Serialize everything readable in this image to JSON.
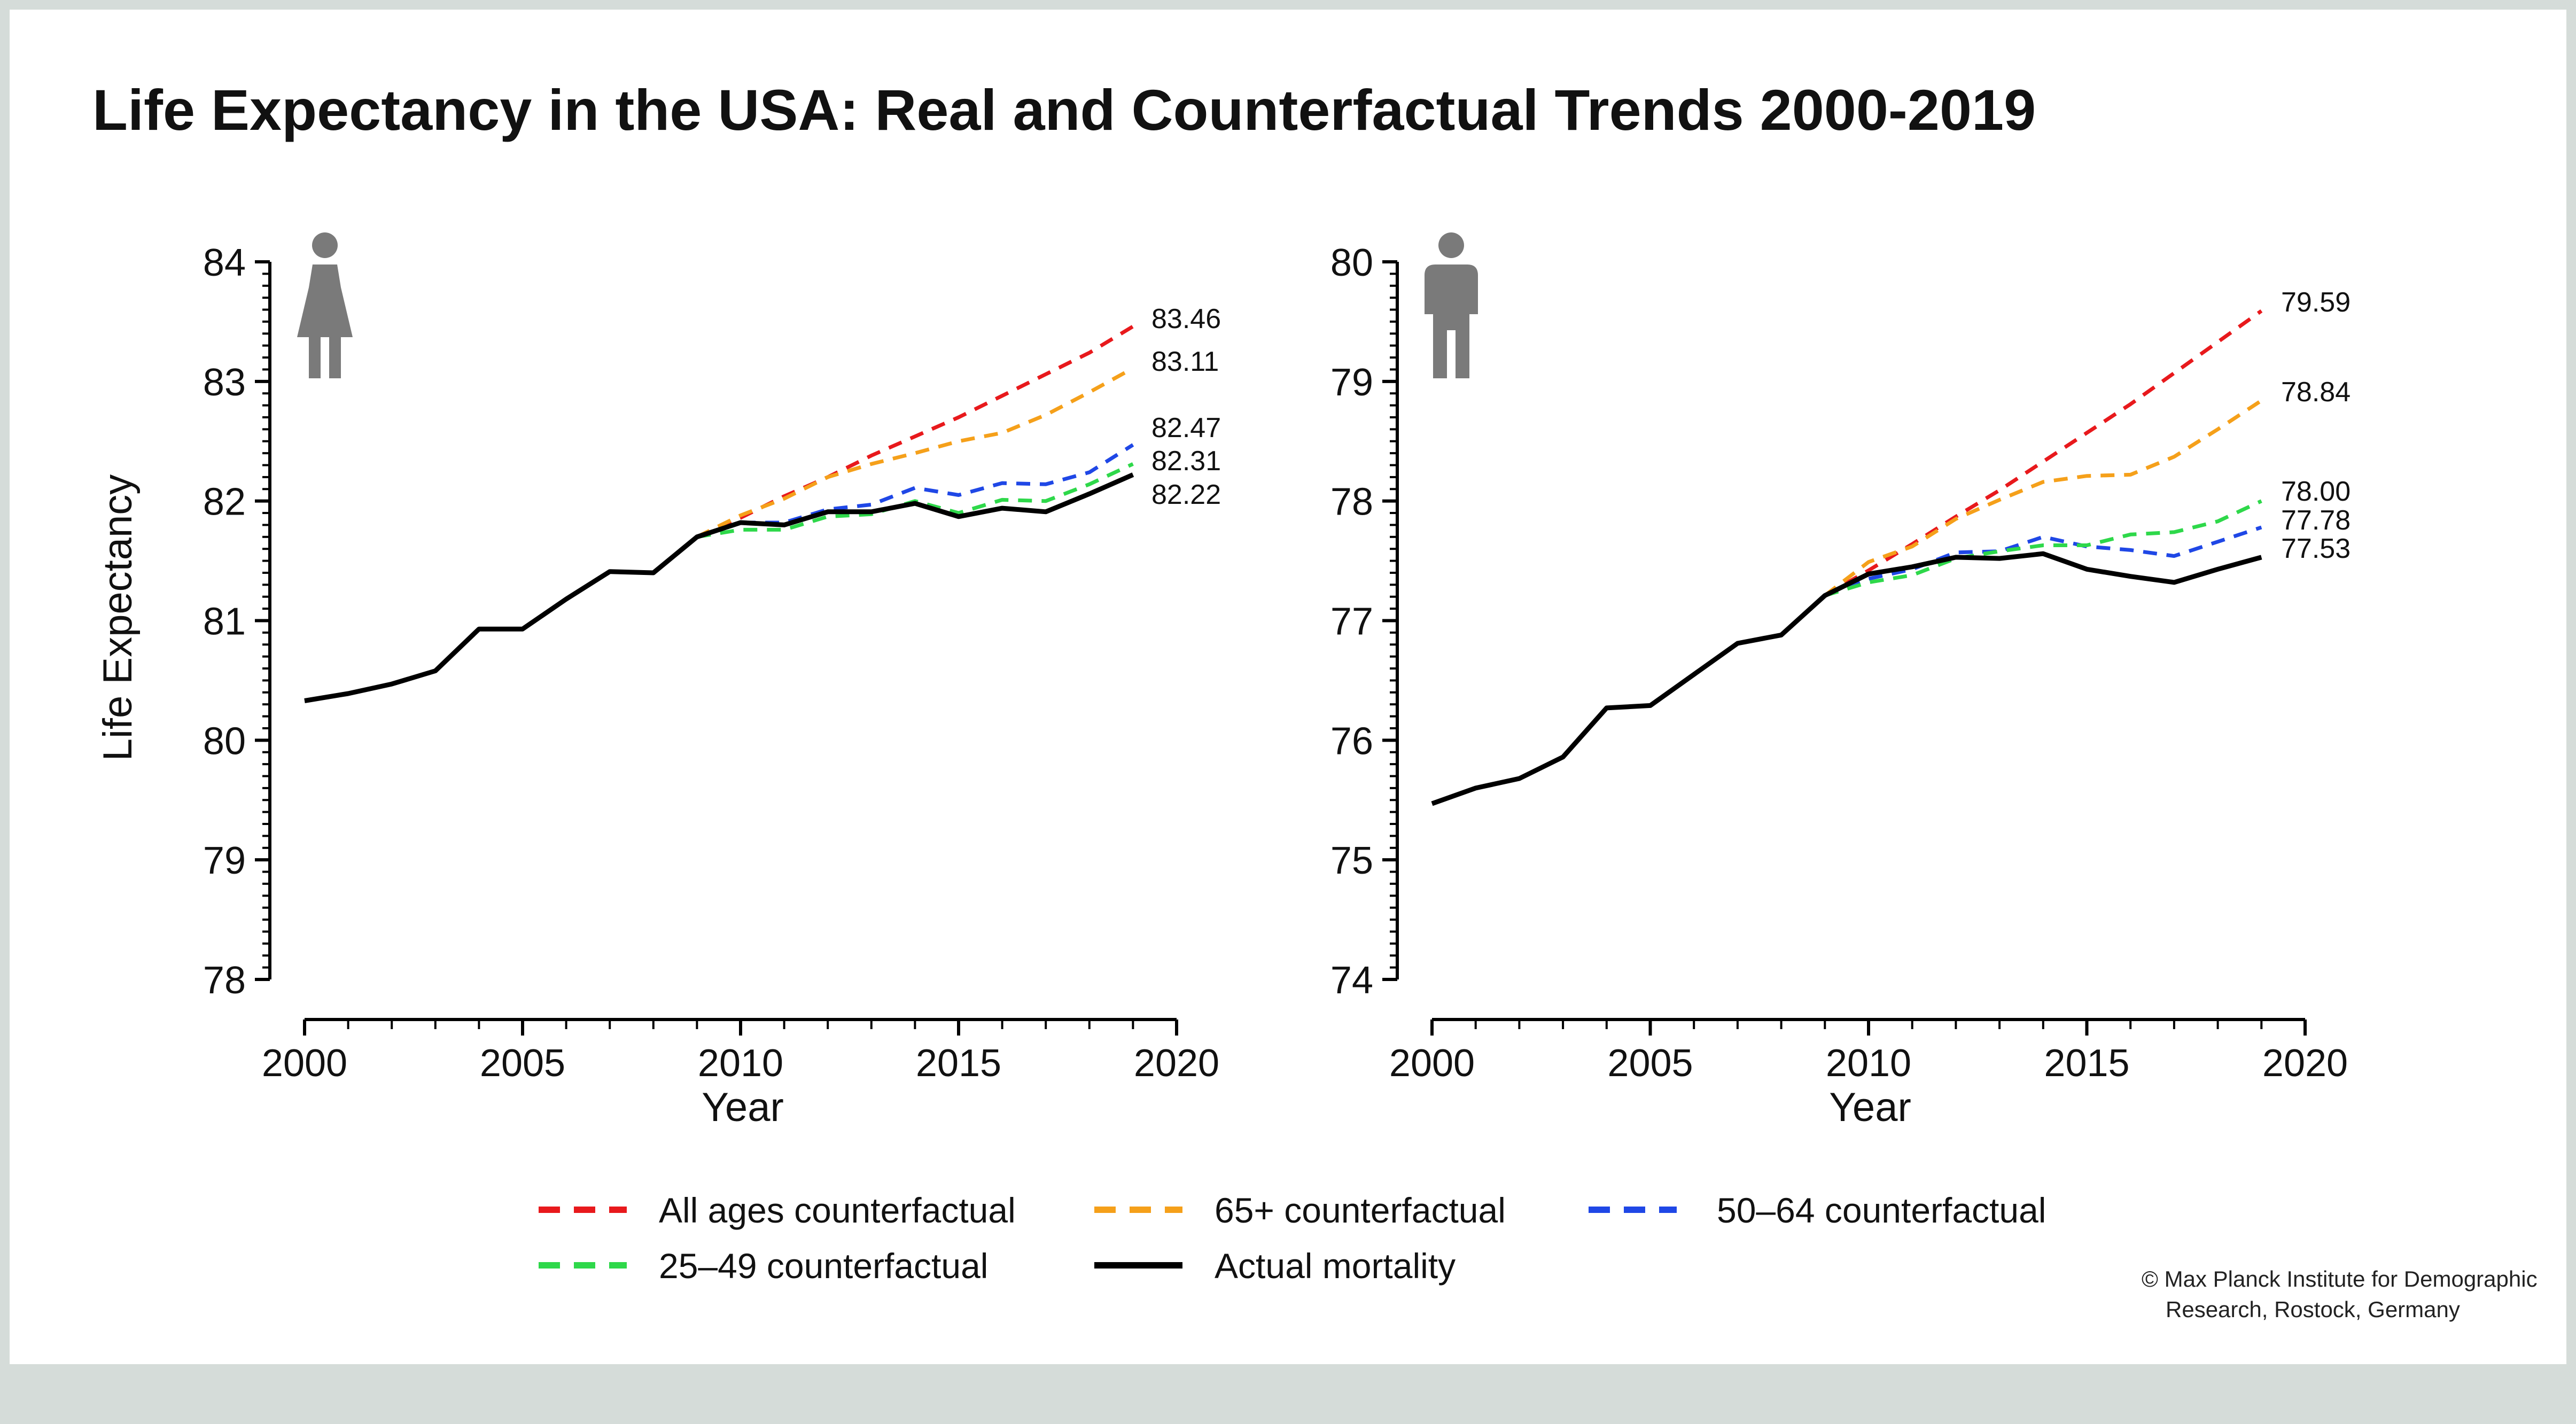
{
  "title": "Life Expectancy in the USA: Real and Counterfactual Trends 2000-2019",
  "y_axis_label": "Life Expectancy",
  "x_axis_label": "Year",
  "credit": [
    "© Max Planck Institute for Demographic",
    "Research, Rostock, Germany"
  ],
  "legend": [
    {
      "key": "all",
      "label": "All ages counterfactual"
    },
    {
      "key": "age65",
      "label": "65+ counterfactual"
    },
    {
      "key": "age50",
      "label": "50–64 counterfactual"
    },
    {
      "key": "age25",
      "label": "25–49 counterfactual"
    },
    {
      "key": "actual",
      "label": "Actual mortality"
    }
  ],
  "series_colors": {
    "all": "#e8191c",
    "age65": "#f5a01a",
    "age50": "#1f47e6",
    "age25": "#2ed84a",
    "actual": "#000000"
  },
  "icons": [
    "female-person-icon",
    "male-person-icon"
  ],
  "chart_data": [
    {
      "type": "line",
      "panel": "female",
      "xlabel": "Year",
      "ylabel": "Life Expectancy",
      "xlim": [
        2000,
        2020
      ],
      "ylim": [
        78,
        84
      ],
      "xticks": [
        2000,
        2005,
        2010,
        2015,
        2020
      ],
      "yticks": [
        78,
        79,
        80,
        81,
        82,
        83,
        84
      ],
      "series": [
        {
          "key": "actual",
          "name": "Actual mortality",
          "x": [
            2000,
            2001,
            2002,
            2003,
            2004,
            2005,
            2006,
            2007,
            2008,
            2009,
            2010,
            2011,
            2012,
            2013,
            2014,
            2015,
            2016,
            2017,
            2018,
            2019
          ],
          "y": [
            80.33,
            80.39,
            80.47,
            80.58,
            80.93,
            80.93,
            81.18,
            81.41,
            81.4,
            81.7,
            81.82,
            81.8,
            81.91,
            81.91,
            81.98,
            81.87,
            81.94,
            81.91,
            82.06,
            82.22
          ]
        },
        {
          "key": "all",
          "name": "All ages counterfactual",
          "x": [
            2009,
            2010,
            2011,
            2012,
            2013,
            2014,
            2015,
            2016,
            2017,
            2018,
            2019
          ],
          "y": [
            81.7,
            81.86,
            82.04,
            82.2,
            82.38,
            82.54,
            82.7,
            82.88,
            83.06,
            83.24,
            83.46
          ]
        },
        {
          "key": "age65",
          "name": "65+ counterfactual",
          "x": [
            2009,
            2010,
            2011,
            2012,
            2013,
            2014,
            2015,
            2016,
            2017,
            2018,
            2019
          ],
          "y": [
            81.7,
            81.88,
            82.02,
            82.2,
            82.31,
            82.4,
            82.5,
            82.57,
            82.72,
            82.91,
            83.11
          ]
        },
        {
          "key": "age50",
          "name": "50–64 counterfactual",
          "x": [
            2009,
            2010,
            2011,
            2012,
            2013,
            2014,
            2015,
            2016,
            2017,
            2018,
            2019
          ],
          "y": [
            81.7,
            81.82,
            81.82,
            81.93,
            81.97,
            82.11,
            82.05,
            82.15,
            82.14,
            82.24,
            82.47
          ]
        },
        {
          "key": "age25",
          "name": "25–49 counterfactual",
          "x": [
            2009,
            2010,
            2011,
            2012,
            2013,
            2014,
            2015,
            2016,
            2017,
            2018,
            2019
          ],
          "y": [
            81.7,
            81.76,
            81.76,
            81.87,
            81.89,
            82.0,
            81.9,
            82.01,
            82.0,
            82.14,
            82.31
          ]
        }
      ],
      "end_labels": [
        {
          "key": "all",
          "text": "83.46"
        },
        {
          "key": "age65",
          "text": "83.11"
        },
        {
          "key": "age50",
          "text": "82.47"
        },
        {
          "key": "age25",
          "text": "82.31"
        },
        {
          "key": "actual",
          "text": "82.22"
        }
      ]
    },
    {
      "type": "line",
      "panel": "male",
      "xlabel": "Year",
      "ylabel": "",
      "xlim": [
        2000,
        2020
      ],
      "ylim": [
        74,
        80
      ],
      "xticks": [
        2000,
        2005,
        2010,
        2015,
        2020
      ],
      "yticks": [
        74,
        75,
        76,
        77,
        78,
        79,
        80
      ],
      "series": [
        {
          "key": "actual",
          "name": "Actual mortality",
          "x": [
            2000,
            2001,
            2002,
            2003,
            2004,
            2005,
            2006,
            2007,
            2008,
            2009,
            2010,
            2011,
            2012,
            2013,
            2014,
            2015,
            2016,
            2017,
            2018,
            2019
          ],
          "y": [
            75.47,
            75.6,
            75.68,
            75.86,
            76.27,
            76.29,
            76.55,
            76.81,
            76.88,
            77.21,
            77.39,
            77.45,
            77.53,
            77.52,
            77.56,
            77.43,
            77.37,
            77.32,
            77.43,
            77.53
          ]
        },
        {
          "key": "all",
          "name": "All ages counterfactual",
          "x": [
            2009,
            2010,
            2011,
            2012,
            2013,
            2014,
            2015,
            2016,
            2017,
            2018,
            2019
          ],
          "y": [
            77.21,
            77.42,
            77.64,
            77.87,
            78.09,
            78.33,
            78.57,
            78.81,
            79.07,
            79.33,
            79.59
          ]
        },
        {
          "key": "age65",
          "name": "65+ counterfactual",
          "x": [
            2009,
            2010,
            2011,
            2012,
            2013,
            2014,
            2015,
            2016,
            2017,
            2018,
            2019
          ],
          "y": [
            77.21,
            77.49,
            77.62,
            77.85,
            78.01,
            78.16,
            78.21,
            78.22,
            78.37,
            78.6,
            78.84
          ]
        },
        {
          "key": "age50",
          "name": "50–64 counterfactual",
          "x": [
            2009,
            2010,
            2011,
            2012,
            2013,
            2014,
            2015,
            2016,
            2017,
            2018,
            2019
          ],
          "y": [
            77.21,
            77.35,
            77.43,
            77.57,
            77.58,
            77.7,
            77.62,
            77.59,
            77.54,
            77.66,
            77.78
          ]
        },
        {
          "key": "age25",
          "name": "25–49 counterfactual",
          "x": [
            2009,
            2010,
            2011,
            2012,
            2013,
            2014,
            2015,
            2016,
            2017,
            2018,
            2019
          ],
          "y": [
            77.21,
            77.32,
            77.38,
            77.52,
            77.58,
            77.63,
            77.63,
            77.72,
            77.74,
            77.83,
            78.0
          ]
        }
      ],
      "end_labels": [
        {
          "key": "all",
          "text": "79.59"
        },
        {
          "key": "age65",
          "text": "78.84"
        },
        {
          "key": "age25",
          "text": "78.00"
        },
        {
          "key": "age50",
          "text": "77.78"
        },
        {
          "key": "actual",
          "text": "77.53"
        }
      ]
    }
  ]
}
